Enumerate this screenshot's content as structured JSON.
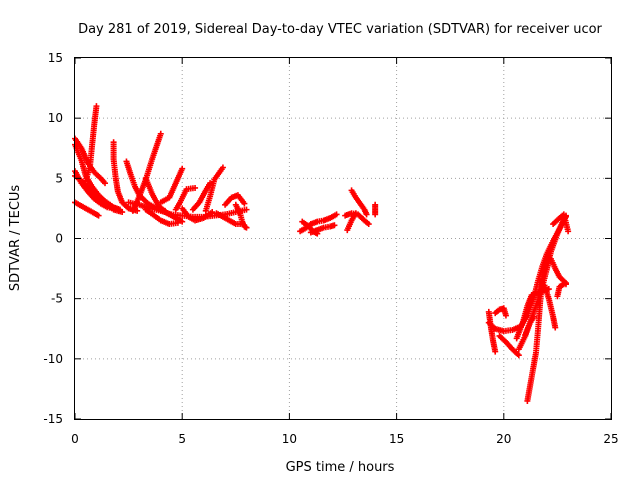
{
  "chart_data": {
    "type": "scatter",
    "title": "Day 281 of 2019, Sidereal Day-to-day VTEC variation (SDTVAR) for receiver ucor",
    "xlabel": "GPS time / hours",
    "ylabel": "SDTVAR / TECUs",
    "xlim": [
      0,
      25
    ],
    "ylim": [
      -15,
      15
    ],
    "xticks": [
      0,
      5,
      10,
      15,
      20,
      25
    ],
    "yticks": [
      -15,
      -10,
      -5,
      0,
      5,
      10,
      15
    ],
    "grid": true,
    "marker": "+",
    "color": "#ff0000",
    "tracks": [
      [
        [
          0.0,
          8.3
        ],
        [
          0.3,
          7.5
        ],
        [
          0.6,
          6.3
        ],
        [
          0.9,
          5.5
        ],
        [
          1.2,
          5.0
        ],
        [
          1.4,
          4.6
        ]
      ],
      [
        [
          0.0,
          7.8
        ],
        [
          0.3,
          6.5
        ],
        [
          0.5,
          5.2
        ],
        [
          0.8,
          4.3
        ],
        [
          1.1,
          3.6
        ],
        [
          1.4,
          3.1
        ],
        [
          1.8,
          2.6
        ],
        [
          2.1,
          2.4
        ]
      ],
      [
        [
          0.0,
          5.6
        ],
        [
          0.3,
          4.6
        ],
        [
          0.6,
          3.9
        ],
        [
          0.9,
          3.3
        ],
        [
          1.2,
          2.9
        ],
        [
          1.5,
          2.6
        ],
        [
          1.8,
          2.5
        ]
      ],
      [
        [
          0.0,
          3.0
        ],
        [
          0.3,
          2.7
        ],
        [
          0.6,
          2.4
        ],
        [
          0.9,
          2.1
        ],
        [
          1.1,
          1.9
        ]
      ],
      [
        [
          0.0,
          5.2
        ],
        [
          0.3,
          4.8
        ],
        [
          0.6,
          4.3
        ],
        [
          1.0,
          3.6
        ],
        [
          1.4,
          2.9
        ],
        [
          1.8,
          2.4
        ],
        [
          2.2,
          2.2
        ]
      ],
      [
        [
          0.5,
          4.8
        ],
        [
          0.7,
          6.0
        ],
        [
          0.8,
          7.8
        ],
        [
          0.9,
          9.5
        ],
        [
          1.0,
          11.0
        ]
      ],
      [
        [
          1.8,
          8.0
        ],
        [
          1.8,
          6.6
        ],
        [
          1.9,
          5.0
        ],
        [
          2.0,
          3.9
        ],
        [
          2.2,
          3.0
        ],
        [
          2.5,
          2.5
        ],
        [
          2.9,
          2.3
        ]
      ],
      [
        [
          2.4,
          6.4
        ],
        [
          2.6,
          5.3
        ],
        [
          2.8,
          4.3
        ],
        [
          3.0,
          3.6
        ],
        [
          3.4,
          2.9
        ],
        [
          3.8,
          2.5
        ],
        [
          4.2,
          2.3
        ]
      ],
      [
        [
          2.7,
          2.3
        ],
        [
          3.0,
          3.5
        ],
        [
          3.3,
          4.9
        ],
        [
          3.6,
          6.6
        ],
        [
          4.0,
          8.7
        ]
      ],
      [
        [
          3.3,
          5.0
        ],
        [
          3.6,
          3.7
        ],
        [
          3.9,
          2.7
        ],
        [
          4.3,
          2.1
        ],
        [
          4.7,
          1.7
        ],
        [
          5.0,
          1.4
        ]
      ],
      [
        [
          4.0,
          3.0
        ],
        [
          4.4,
          3.4
        ],
        [
          4.7,
          4.6
        ],
        [
          5.0,
          5.8
        ]
      ],
      [
        [
          4.7,
          2.4
        ],
        [
          4.9,
          3.0
        ],
        [
          5.2,
          4.1
        ],
        [
          5.6,
          4.2
        ]
      ],
      [
        [
          3.3,
          2.4
        ],
        [
          3.7,
          1.9
        ],
        [
          4.0,
          1.5
        ],
        [
          4.4,
          1.2
        ],
        [
          4.8,
          1.3
        ]
      ],
      [
        [
          5.0,
          2.5
        ],
        [
          5.3,
          1.8
        ],
        [
          5.6,
          1.5
        ],
        [
          6.0,
          1.7
        ],
        [
          6.4,
          2.2
        ]
      ],
      [
        [
          5.5,
          2.4
        ],
        [
          5.8,
          3.0
        ],
        [
          6.1,
          4.0
        ],
        [
          6.3,
          4.6
        ]
      ],
      [
        [
          6.1,
          2.3
        ],
        [
          6.3,
          3.5
        ],
        [
          6.5,
          4.9
        ],
        [
          6.9,
          5.9
        ]
      ],
      [
        [
          2.5,
          3.0
        ],
        [
          3.0,
          2.8
        ],
        [
          3.5,
          2.5
        ],
        [
          4.0,
          2.3
        ],
        [
          4.5,
          2.0
        ],
        [
          5.0,
          1.9
        ],
        [
          5.5,
          1.8
        ],
        [
          6.0,
          1.8
        ],
        [
          6.5,
          1.9
        ],
        [
          7.0,
          2.0
        ],
        [
          7.5,
          2.2
        ],
        [
          8.0,
          2.4
        ]
      ],
      [
        [
          6.6,
          2.1
        ],
        [
          6.9,
          1.8
        ],
        [
          7.2,
          1.5
        ],
        [
          7.5,
          1.2
        ],
        [
          7.8,
          1.2
        ]
      ],
      [
        [
          7.0,
          2.8
        ],
        [
          7.3,
          3.4
        ],
        [
          7.6,
          3.6
        ],
        [
          7.9,
          2.9
        ]
      ],
      [
        [
          7.5,
          2.8
        ],
        [
          7.7,
          2.1
        ],
        [
          7.8,
          1.4
        ],
        [
          7.9,
          1.0
        ],
        [
          8.0,
          0.9
        ]
      ],
      [
        [
          10.5,
          0.6
        ],
        [
          10.8,
          0.9
        ],
        [
          11.0,
          1.2
        ],
        [
          11.3,
          1.4
        ],
        [
          11.6,
          1.5
        ],
        [
          11.9,
          1.7
        ],
        [
          12.2,
          2.0
        ]
      ],
      [
        [
          10.6,
          1.4
        ],
        [
          10.9,
          1.0
        ],
        [
          11.1,
          0.6
        ],
        [
          11.3,
          0.4
        ]
      ],
      [
        [
          11.0,
          0.5
        ],
        [
          11.3,
          0.7
        ],
        [
          11.6,
          0.9
        ],
        [
          11.9,
          1.0
        ],
        [
          12.1,
          1.1
        ]
      ],
      [
        [
          12.6,
          1.9
        ],
        [
          12.9,
          2.1
        ],
        [
          13.2,
          2.0
        ],
        [
          13.5,
          1.5
        ],
        [
          13.7,
          1.2
        ]
      ],
      [
        [
          12.7,
          0.7
        ],
        [
          12.9,
          1.5
        ],
        [
          13.1,
          2.1
        ]
      ],
      [
        [
          12.9,
          4.0
        ],
        [
          13.1,
          3.4
        ],
        [
          13.3,
          2.9
        ],
        [
          13.5,
          2.4
        ],
        [
          13.6,
          2.0
        ]
      ],
      [
        [
          14.0,
          2.8
        ],
        [
          14.0,
          2.4
        ],
        [
          14.0,
          2.0
        ]
      ],
      [
        [
          19.3,
          -7.0
        ],
        [
          19.6,
          -7.5
        ],
        [
          20.0,
          -7.7
        ],
        [
          20.4,
          -7.6
        ],
        [
          20.8,
          -7.3
        ],
        [
          21.1,
          -6.4
        ],
        [
          21.4,
          -4.9
        ],
        [
          21.6,
          -3.5
        ],
        [
          21.8,
          -2.3
        ],
        [
          22.0,
          -1.3
        ],
        [
          22.3,
          -0.2
        ],
        [
          22.6,
          0.8
        ],
        [
          22.9,
          1.8
        ]
      ],
      [
        [
          19.3,
          -6.1
        ],
        [
          19.4,
          -7.4
        ],
        [
          19.5,
          -8.5
        ],
        [
          19.6,
          -9.4
        ]
      ],
      [
        [
          19.6,
          -6.2
        ],
        [
          19.8,
          -5.9
        ],
        [
          20.0,
          -5.8
        ],
        [
          20.1,
          -6.4
        ]
      ],
      [
        [
          19.8,
          -8.1
        ],
        [
          20.1,
          -8.6
        ],
        [
          20.4,
          -9.2
        ],
        [
          20.7,
          -9.7
        ]
      ],
      [
        [
          20.6,
          -8.3
        ],
        [
          20.9,
          -6.9
        ],
        [
          21.1,
          -5.6
        ],
        [
          21.3,
          -4.7
        ],
        [
          21.6,
          -4.5
        ],
        [
          21.9,
          -4.3
        ],
        [
          22.1,
          -4.2
        ]
      ],
      [
        [
          20.7,
          -9.2
        ],
        [
          21.0,
          -8.1
        ],
        [
          21.2,
          -7.1
        ],
        [
          21.4,
          -6.5
        ]
      ],
      [
        [
          21.0,
          -8.0
        ],
        [
          21.2,
          -7.1
        ],
        [
          21.4,
          -6.1
        ],
        [
          21.6,
          -5.1
        ],
        [
          21.8,
          -4.0
        ],
        [
          22.0,
          -2.6
        ],
        [
          22.2,
          -1.1
        ],
        [
          22.5,
          0.4
        ],
        [
          22.8,
          1.6
        ],
        [
          22.9,
          1.9
        ]
      ],
      [
        [
          21.1,
          -13.5
        ],
        [
          21.3,
          -11.5
        ],
        [
          21.5,
          -9.5
        ],
        [
          21.6,
          -7.5
        ],
        [
          21.7,
          -5.2
        ],
        [
          21.8,
          -3.2
        ],
        [
          22.0,
          -1.9
        ],
        [
          22.2,
          -1.7
        ],
        [
          22.4,
          -2.5
        ],
        [
          22.6,
          -3.2
        ],
        [
          22.9,
          -3.7
        ]
      ],
      [
        [
          21.9,
          -3.9
        ],
        [
          22.1,
          -5.0
        ],
        [
          22.3,
          -6.5
        ],
        [
          22.4,
          -7.4
        ]
      ],
      [
        [
          22.5,
          -4.8
        ],
        [
          22.6,
          -4.0
        ],
        [
          22.8,
          -3.8
        ],
        [
          22.9,
          -3.8
        ]
      ],
      [
        [
          22.3,
          1.2
        ],
        [
          22.6,
          1.7
        ],
        [
          22.8,
          2.0
        ],
        [
          22.9,
          1.3
        ],
        [
          23.0,
          0.6
        ]
      ]
    ]
  }
}
